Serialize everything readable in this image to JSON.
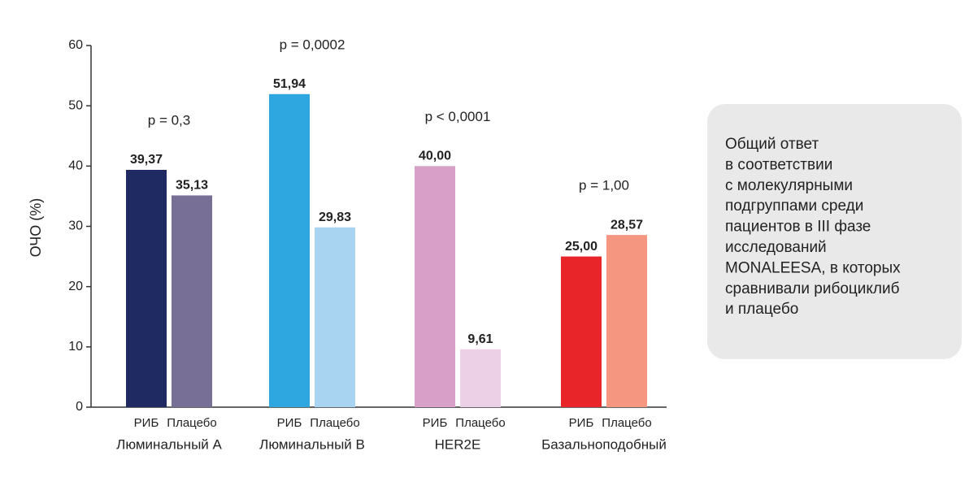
{
  "chart_data": {
    "type": "bar",
    "y_label": "ОЧО (%)",
    "categories": [
      "Люминальный А",
      "Люминальный В",
      "HER2E",
      "Базальноподобный"
    ],
    "series": [
      {
        "name": "РИБ",
        "colors": [
          "#1f2a63",
          "#2ea7e0",
          "#d8a0c8",
          "#e8262a"
        ],
        "values": [
          39.37,
          51.94,
          40.0,
          25.0
        ],
        "value_labels": [
          "39,37",
          "51,94",
          "40,00",
          "25,00"
        ]
      },
      {
        "name": "Плацебо",
        "colors": [
          "#786f97",
          "#a9d4f1",
          "#ecd1e6",
          "#f59680"
        ],
        "values": [
          35.13,
          29.83,
          9.61,
          28.57
        ],
        "value_labels": [
          "35,13",
          "29,83",
          "9,61",
          "28,57"
        ]
      }
    ],
    "annotations": [
      "p = 0,3",
      "p = 0,0002",
      "p < 0,0001",
      "p = 1,00"
    ],
    "ylim": [
      0,
      60
    ],
    "yticks": [
      0,
      10,
      20,
      30,
      40,
      50,
      60
    ],
    "note": [
      "Общий ответ",
      "в соответствии",
      "с молекулярными",
      "подгруппами среди",
      "пациентов в III фазе",
      "исследований",
      "MONALEESA, в которых",
      "сравнивали рибоциклиб",
      "и плацебо"
    ]
  }
}
